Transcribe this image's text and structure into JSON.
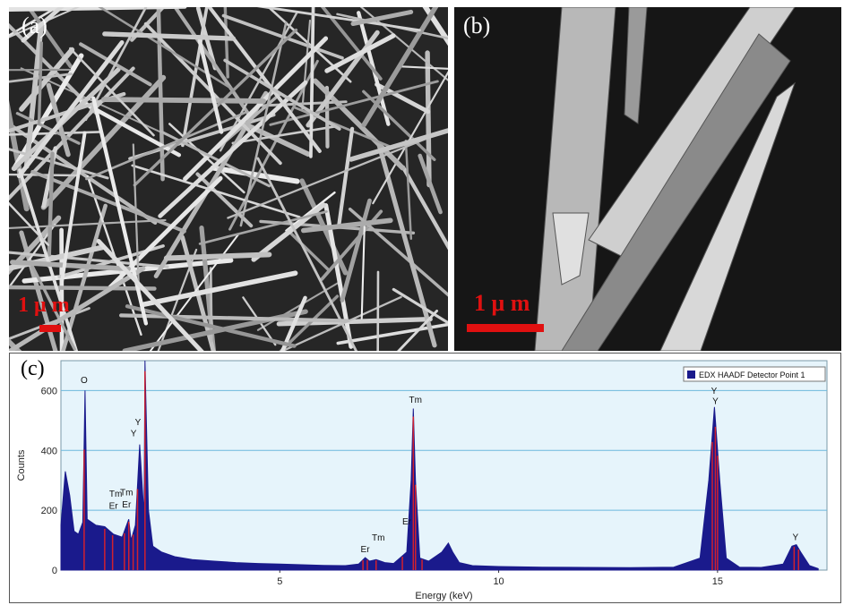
{
  "figure": {
    "panel_a": {
      "label": "(a)",
      "scale_bar_text": "1 μ m"
    },
    "panel_b": {
      "label": "(b)",
      "scale_bar_text": "1 μ m"
    },
    "panel_c": {
      "label": "(c)"
    }
  },
  "chart_data": {
    "type": "line",
    "title": "",
    "xlabel": "Energy (keV)",
    "ylabel": "Counts",
    "xlim": [
      0,
      17.5
    ],
    "ylim": [
      0,
      700
    ],
    "x_ticks": [
      5,
      10,
      15
    ],
    "y_ticks": [
      0,
      200,
      400,
      600
    ],
    "grid": true,
    "legend_placement": "top-right",
    "series": [
      {
        "name": "EDX HAADF Detector Point 1",
        "color": "#1a1a8c",
        "x": [
          0.0,
          0.1,
          0.2,
          0.3,
          0.4,
          0.5,
          0.55,
          0.6,
          0.7,
          0.8,
          1.0,
          1.2,
          1.4,
          1.55,
          1.6,
          1.7,
          1.8,
          1.9,
          1.92,
          2.0,
          2.1,
          2.3,
          2.6,
          3.0,
          3.5,
          4.0,
          4.5,
          5.0,
          5.5,
          6.0,
          6.5,
          6.8,
          6.95,
          7.05,
          7.2,
          7.4,
          7.6,
          7.9,
          8.0,
          8.05,
          8.1,
          8.2,
          8.4,
          8.7,
          8.85,
          8.95,
          9.1,
          9.4,
          10.0,
          11.0,
          12.0,
          13.0,
          14.0,
          14.6,
          14.8,
          14.93,
          15.05,
          15.2,
          15.5,
          16.0,
          16.5,
          16.7,
          16.8,
          16.9,
          17.1,
          17.3
        ],
        "y": [
          150,
          330,
          250,
          130,
          120,
          160,
          600,
          170,
          160,
          150,
          145,
          120,
          110,
          170,
          100,
          150,
          420,
          180,
          700,
          200,
          80,
          60,
          45,
          35,
          30,
          25,
          22,
          20,
          18,
          16,
          15,
          20,
          42,
          30,
          35,
          25,
          22,
          60,
          300,
          540,
          300,
          40,
          30,
          60,
          90,
          60,
          25,
          15,
          12,
          10,
          9,
          8,
          10,
          40,
          300,
          545,
          300,
          40,
          10,
          9,
          20,
          80,
          85,
          60,
          15,
          5
        ]
      }
    ],
    "peak_labels": [
      {
        "text": "O",
        "x": 0.53,
        "y": 625
      },
      {
        "text": "Y",
        "x": 1.76,
        "y": 485
      },
      {
        "text": "Y",
        "x": 1.66,
        "y": 447
      },
      {
        "text": "Tm",
        "x": 1.25,
        "y": 245
      },
      {
        "text": "Tm",
        "x": 1.5,
        "y": 250
      },
      {
        "text": "Er",
        "x": 1.2,
        "y": 205
      },
      {
        "text": "Er",
        "x": 1.5,
        "y": 210
      },
      {
        "text": "Tm",
        "x": 8.1,
        "y": 560
      },
      {
        "text": "Er",
        "x": 7.9,
        "y": 152
      },
      {
        "text": "Tm",
        "x": 7.25,
        "y": 98
      },
      {
        "text": "Er",
        "x": 6.95,
        "y": 60
      },
      {
        "text": "Y",
        "x": 14.92,
        "y": 590
      },
      {
        "text": "Y",
        "x": 14.95,
        "y": 555
      },
      {
        "text": "Y",
        "x": 16.78,
        "y": 100
      }
    ],
    "marker_lines_x": [
      0.53,
      1.0,
      1.18,
      1.45,
      1.55,
      1.65,
      1.75,
      1.92,
      6.9,
      7.0,
      7.2,
      7.8,
      8.05,
      8.1,
      8.25,
      14.88,
      14.95,
      15.0,
      16.75,
      16.85
    ]
  }
}
